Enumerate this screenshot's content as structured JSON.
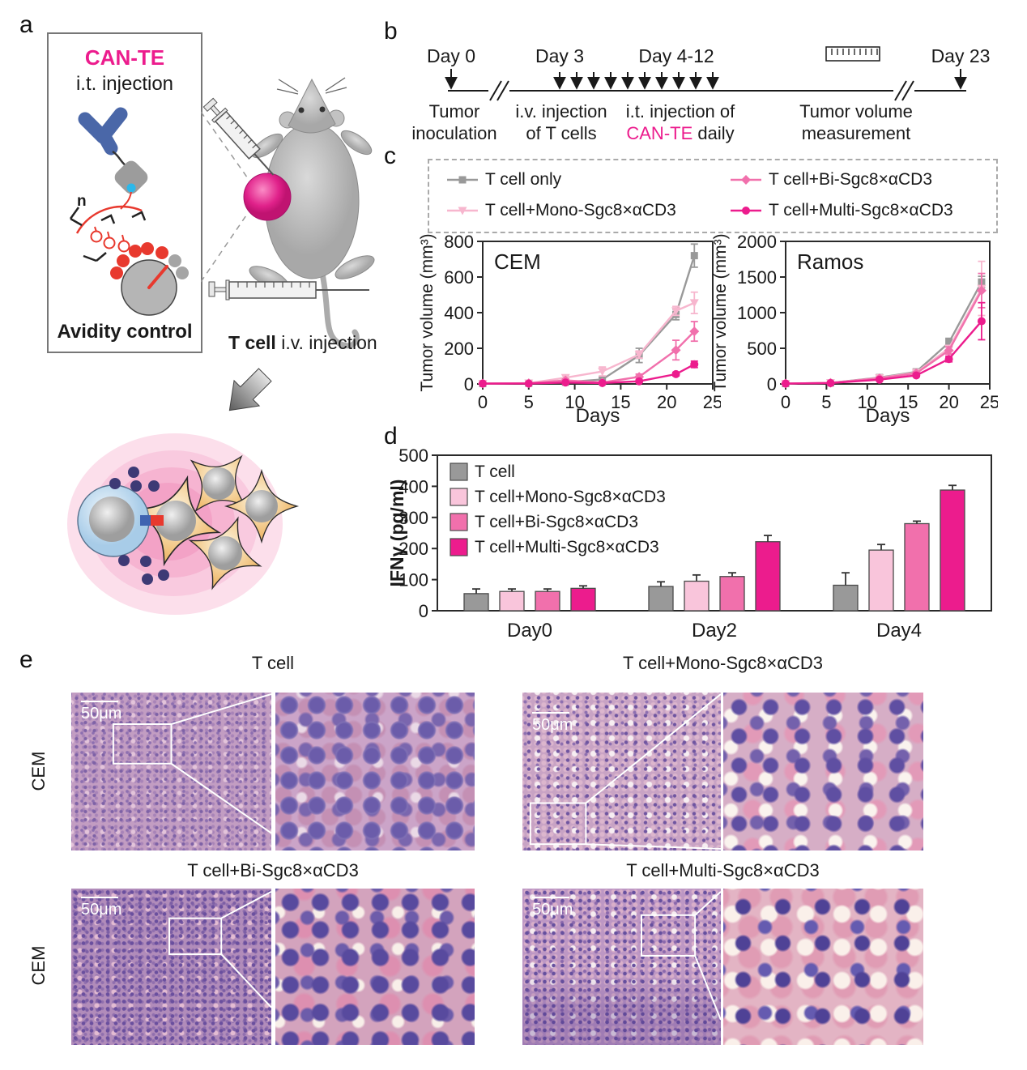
{
  "panel_letters": {
    "a": "a",
    "b": "b",
    "c": "c",
    "d": "d",
    "e": "e"
  },
  "colors": {
    "gray": "#999999",
    "light_pink": "#F7B6CE",
    "pink": "#F170AC",
    "magenta": "#EC1C8D"
  },
  "panel_a": {
    "title": "CAN-TE",
    "subtitle": "i.t. injection",
    "footer": "Avidity control",
    "n_label": "n",
    "tcell_bold": "T cell",
    "tcell_rest": " i.v. injection"
  },
  "panel_b": {
    "day0": "Day 0",
    "day3": "Day 3",
    "day412": "Day 4-12",
    "day23": "Day 23",
    "l1a": "Tumor",
    "l1b": "inoculation",
    "l2a": "i.v. injection",
    "l2b": "of T cells",
    "l3a": "i.t. injection of",
    "l3b_accent": "CAN-TE",
    "l3b_rest": " daily",
    "l4a": "Tumor volume",
    "l4b": "measurement"
  },
  "panel_c": {
    "legend": [
      {
        "label": "T cell only",
        "color": "#999999",
        "marker": "square"
      },
      {
        "label": "T cell+Mono-Sgc8×αCD3",
        "color": "#F7B6CE",
        "marker": "triangle"
      },
      {
        "label": "T cell+Bi-Sgc8×αCD3",
        "color": "#F170AC",
        "marker": "diamond"
      },
      {
        "label": "T cell+Multi-Sgc8×αCD3",
        "color": "#EC1C8D",
        "marker": "circle"
      }
    ]
  },
  "chart_data": [
    {
      "type": "line",
      "title": "CEM",
      "xlabel": "Days",
      "ylabel": "Tumor volume (mm³)",
      "xlim": [
        0,
        25
      ],
      "xticks": [
        0,
        5,
        10,
        15,
        20,
        25
      ],
      "ylim": [
        0,
        800
      ],
      "yticks": [
        0,
        200,
        400,
        600,
        800
      ],
      "grid": false,
      "legend_position": "shared-top",
      "x": [
        0,
        5,
        9,
        13,
        17,
        21,
        23
      ],
      "series": [
        {
          "name": "T cell only",
          "color": "#999999",
          "marker": "square",
          "values": [
            2,
            4,
            10,
            25,
            160,
            390,
            720
          ],
          "errors": [
            2,
            3,
            6,
            12,
            40,
            30,
            65
          ]
        },
        {
          "name": "T cell+Mono-Sgc8×αCD3",
          "color": "#F7B6CE",
          "marker": "triangle",
          "values": [
            2,
            4,
            35,
            70,
            165,
            410,
            455
          ],
          "errors": [
            2,
            3,
            15,
            25,
            20,
            25,
            60
          ]
        },
        {
          "name": "T cell+Bi-Sgc8×αCD3",
          "color": "#F170AC",
          "marker": "diamond",
          "values": [
            2,
            4,
            20,
            8,
            40,
            190,
            295
          ],
          "errors": [
            2,
            3,
            8,
            5,
            15,
            55,
            55
          ]
        },
        {
          "name": "T cell+Multi-Sgc8×αCD3",
          "color": "#EC1C8D",
          "marker": "circle",
          "values": [
            2,
            2,
            8,
            5,
            15,
            55,
            110
          ],
          "errors": [
            2,
            2,
            4,
            3,
            6,
            10,
            18
          ]
        }
      ]
    },
    {
      "type": "line",
      "title": "Ramos",
      "xlabel": "Days",
      "ylabel": "Tumor volume (mm³)",
      "xlim": [
        0,
        25
      ],
      "xticks": [
        0,
        5,
        10,
        15,
        20,
        25
      ],
      "ylim": [
        0,
        2000
      ],
      "yticks": [
        0,
        500,
        1000,
        1500,
        2000
      ],
      "grid": false,
      "legend_position": "shared-top",
      "x": [
        0,
        5.5,
        11.5,
        16,
        20,
        24
      ],
      "series": [
        {
          "name": "T cell only",
          "color": "#999999",
          "marker": "square",
          "values": [
            5,
            15,
            90,
            170,
            580,
            1430
          ],
          "errors": [
            3,
            5,
            20,
            25,
            60,
            80
          ]
        },
        {
          "name": "T cell+Mono-Sgc8×αCD3",
          "color": "#F7B6CE",
          "marker": "triangle",
          "values": [
            5,
            15,
            85,
            160,
            500,
            1340
          ],
          "errors": [
            3,
            5,
            15,
            20,
            40,
            380
          ]
        },
        {
          "name": "T cell+Bi-Sgc8×αCD3",
          "color": "#F170AC",
          "marker": "diamond",
          "values": [
            5,
            15,
            80,
            150,
            470,
            1310
          ],
          "errors": [
            3,
            5,
            15,
            20,
            50,
            240
          ]
        },
        {
          "name": "T cell+Multi-Sgc8×αCD3",
          "color": "#EC1C8D",
          "marker": "circle",
          "values": [
            5,
            12,
            60,
            120,
            350,
            880
          ],
          "errors": [
            3,
            4,
            10,
            15,
            40,
            260
          ]
        }
      ]
    },
    {
      "type": "bar",
      "title": "",
      "xlabel": "",
      "ylabel": "IFNγ (pg/ml)",
      "ylim": [
        0,
        500
      ],
      "yticks": [
        0,
        100,
        200,
        300,
        400,
        500
      ],
      "grid": false,
      "legend_position": "top-left",
      "categories": [
        "Day0",
        "Day2",
        "Day4"
      ],
      "series": [
        {
          "name": "T cell",
          "color": "#999999",
          "values": [
            55,
            78,
            82
          ],
          "errors": [
            15,
            15,
            40
          ]
        },
        {
          "name": "T cell+Mono-Sgc8×αCD3",
          "color": "#F9C5DB",
          "values": [
            62,
            95,
            195
          ],
          "errors": [
            8,
            20,
            18
          ]
        },
        {
          "name": "T cell+Bi-Sgc8×αCD3",
          "color": "#F170AC",
          "values": [
            62,
            110,
            280
          ],
          "errors": [
            8,
            12,
            8
          ]
        },
        {
          "name": "T cell+Multi-Sgc8×αCD3",
          "color": "#EC1C8D",
          "values": [
            72,
            222,
            388
          ],
          "errors": [
            8,
            20,
            15
          ]
        }
      ]
    }
  ],
  "panel_e": {
    "scale_label": "50μm",
    "row_label": "CEM",
    "groups": [
      {
        "title": "T cell"
      },
      {
        "title": "T cell+Mono-Sgc8×αCD3"
      },
      {
        "title": "T cell+Bi-Sgc8×αCD3"
      },
      {
        "title": "T cell+Multi-Sgc8×αCD3"
      }
    ]
  }
}
